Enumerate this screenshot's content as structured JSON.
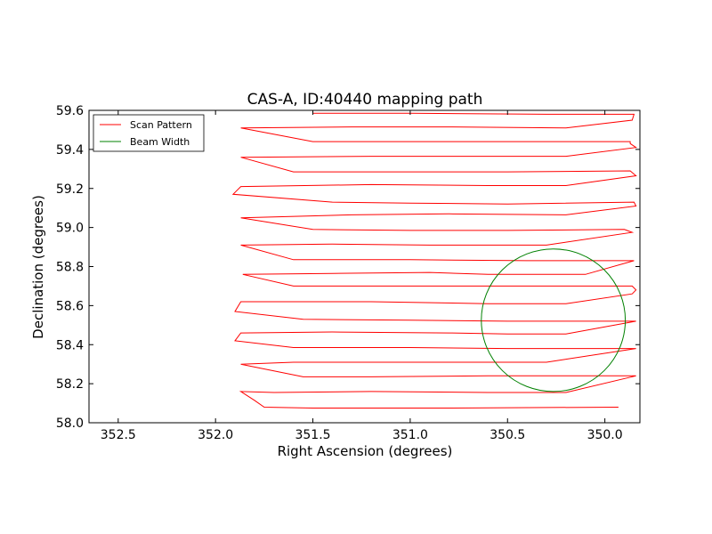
{
  "chart_data": {
    "type": "line",
    "title": "CAS-A, ID:40440 mapping path",
    "xlabel": "Right Ascension (degrees)",
    "ylabel": "Declination (degrees)",
    "xlim": [
      352.65,
      349.82
    ],
    "ylim": [
      58.0,
      59.6
    ],
    "x_ticks": [
      352.5,
      352.0,
      351.5,
      351.0,
      350.5,
      350.0
    ],
    "x_tick_labels": [
      "352.5",
      "352.0",
      "351.5",
      "351.0",
      "350.5",
      "350.0"
    ],
    "y_ticks": [
      58.0,
      58.2,
      58.4,
      58.6,
      58.8,
      59.0,
      59.2,
      59.4,
      59.6
    ],
    "y_tick_labels": [
      "58.0",
      "58.2",
      "58.4",
      "58.6",
      "58.8",
      "59.0",
      "59.2",
      "59.4",
      "59.6"
    ],
    "grid": false,
    "legend_position": "top-left",
    "series": [
      {
        "name": "Scan Pattern",
        "color": "#ff0000",
        "kind": "path",
        "points": [
          [
            349.93,
            58.08
          ],
          [
            350.8,
            58.075
          ],
          [
            351.5,
            58.075
          ],
          [
            351.75,
            58.08
          ],
          [
            351.8,
            58.115
          ],
          [
            351.87,
            58.16
          ],
          [
            351.7,
            58.155
          ],
          [
            351.2,
            58.16
          ],
          [
            350.6,
            58.155
          ],
          [
            350.2,
            58.155
          ],
          [
            349.84,
            58.24
          ],
          [
            350.1,
            58.24
          ],
          [
            350.6,
            58.24
          ],
          [
            351.2,
            58.235
          ],
          [
            351.55,
            58.235
          ],
          [
            351.87,
            58.3
          ],
          [
            351.6,
            58.31
          ],
          [
            351.0,
            58.31
          ],
          [
            350.5,
            58.31
          ],
          [
            350.3,
            58.31
          ],
          [
            349.84,
            58.38
          ],
          [
            350.5,
            58.38
          ],
          [
            351.0,
            58.385
          ],
          [
            351.6,
            58.385
          ],
          [
            351.9,
            58.42
          ],
          [
            351.87,
            58.46
          ],
          [
            351.4,
            58.465
          ],
          [
            350.8,
            58.46
          ],
          [
            350.5,
            58.455
          ],
          [
            350.2,
            58.455
          ],
          [
            349.84,
            58.52
          ],
          [
            350.5,
            58.52
          ],
          [
            351.0,
            58.525
          ],
          [
            351.55,
            58.53
          ],
          [
            351.9,
            58.57
          ],
          [
            351.87,
            58.62
          ],
          [
            351.2,
            58.62
          ],
          [
            350.6,
            58.61
          ],
          [
            350.2,
            58.61
          ],
          [
            349.86,
            58.66
          ],
          [
            349.84,
            58.68
          ],
          [
            349.86,
            58.7
          ],
          [
            350.5,
            58.7
          ],
          [
            351.0,
            58.7
          ],
          [
            351.6,
            58.7
          ],
          [
            351.86,
            58.76
          ],
          [
            351.4,
            58.765
          ],
          [
            350.9,
            58.77
          ],
          [
            350.6,
            58.76
          ],
          [
            350.1,
            58.76
          ],
          [
            349.85,
            58.83
          ],
          [
            350.4,
            58.83
          ],
          [
            351.0,
            58.835
          ],
          [
            351.6,
            58.835
          ],
          [
            351.87,
            58.91
          ],
          [
            351.4,
            58.915
          ],
          [
            350.9,
            58.91
          ],
          [
            350.3,
            58.91
          ],
          [
            349.86,
            58.975
          ],
          [
            349.9,
            58.99
          ],
          [
            350.5,
            58.985
          ],
          [
            351.0,
            58.985
          ],
          [
            351.5,
            58.99
          ],
          [
            351.87,
            59.05
          ],
          [
            351.3,
            59.065
          ],
          [
            350.8,
            59.07
          ],
          [
            350.2,
            59.065
          ],
          [
            349.84,
            59.11
          ],
          [
            349.85,
            59.13
          ],
          [
            350.5,
            59.12
          ],
          [
            351.0,
            59.125
          ],
          [
            351.4,
            59.13
          ],
          [
            351.91,
            59.17
          ],
          [
            351.87,
            59.21
          ],
          [
            351.2,
            59.22
          ],
          [
            350.6,
            59.215
          ],
          [
            350.2,
            59.215
          ],
          [
            349.84,
            59.265
          ],
          [
            349.87,
            59.29
          ],
          [
            350.5,
            59.285
          ],
          [
            351.0,
            59.285
          ],
          [
            351.6,
            59.285
          ],
          [
            351.87,
            59.36
          ],
          [
            351.2,
            59.365
          ],
          [
            350.6,
            59.365
          ],
          [
            350.2,
            59.365
          ],
          [
            349.84,
            59.41
          ],
          [
            349.87,
            59.43
          ],
          [
            349.87,
            59.44
          ],
          [
            350.5,
            59.44
          ],
          [
            351.0,
            59.44
          ],
          [
            351.5,
            59.44
          ],
          [
            351.87,
            59.51
          ],
          [
            351.3,
            59.515
          ],
          [
            350.8,
            59.515
          ],
          [
            350.2,
            59.51
          ],
          [
            349.86,
            59.55
          ],
          [
            349.85,
            59.58
          ],
          [
            350.3,
            59.58
          ],
          [
            351.0,
            59.585
          ],
          [
            351.5,
            59.585
          ]
        ]
      },
      {
        "name": "Beam Width",
        "color": "#008000",
        "kind": "circle",
        "center": [
          350.265,
          58.525
        ],
        "radius_ra": 0.37,
        "radius_dec": 0.365
      }
    ]
  }
}
